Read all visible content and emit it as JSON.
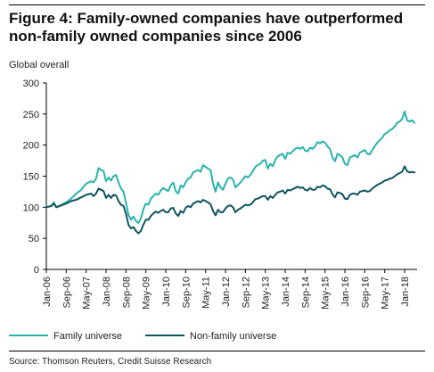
{
  "figure": {
    "title": "Figure 4: Family-owned companies have outperformed non-family owned companies since 2006",
    "source": "Source: Thomson Reuters, Credit Suisse Research"
  },
  "colors": {
    "family": "#2ab3ad",
    "non_family": "#0f5560",
    "axis": "#000000"
  },
  "chart_data": {
    "type": "line",
    "title": "Figure 4: Family-owned companies have outperformed non-family owned companies since 2006",
    "xlabel": "",
    "ylabel": "Global overall",
    "ylim": [
      0,
      300
    ],
    "yticks": [
      0,
      50,
      100,
      150,
      200,
      250,
      300
    ],
    "xlim": [
      "2006-01",
      "2018-06"
    ],
    "xtick_labels": [
      "Jan-06",
      "Sep-06",
      "May-07",
      "Jan-08",
      "Sep-08",
      "May-09",
      "Jan-10",
      "Sep-10",
      "May-11",
      "Jan-12",
      "Sep-12",
      "May-13",
      "Jan-14",
      "Sep-14",
      "May-15",
      "Jan-16",
      "Sep-16",
      "May-17",
      "Jan-18"
    ],
    "grid": false,
    "legend_position": "bottom",
    "series": [
      {
        "name": "Family universe",
        "color": "#2ab3ad",
        "points": [
          [
            "2006-01",
            100
          ],
          [
            "2006-03",
            102
          ],
          [
            "2006-04",
            108
          ],
          [
            "2006-05",
            100
          ],
          [
            "2006-07",
            104
          ],
          [
            "2006-09",
            108
          ],
          [
            "2006-11",
            114
          ],
          [
            "2007-01",
            122
          ],
          [
            "2007-03",
            128
          ],
          [
            "2007-05",
            138
          ],
          [
            "2007-07",
            142
          ],
          [
            "2007-08",
            140
          ],
          [
            "2007-09",
            146
          ],
          [
            "2007-10",
            163
          ],
          [
            "2007-11",
            160
          ],
          [
            "2007-12",
            158
          ],
          [
            "2008-01",
            142
          ],
          [
            "2008-02",
            148
          ],
          [
            "2008-03",
            143
          ],
          [
            "2008-04",
            150
          ],
          [
            "2008-05",
            152
          ],
          [
            "2008-06",
            140
          ],
          [
            "2008-07",
            130
          ],
          [
            "2008-08",
            125
          ],
          [
            "2008-09",
            108
          ],
          [
            "2008-10",
            88
          ],
          [
            "2008-11",
            80
          ],
          [
            "2008-12",
            85
          ],
          [
            "2009-01",
            78
          ],
          [
            "2009-02",
            75
          ],
          [
            "2009-03",
            82
          ],
          [
            "2009-04",
            97
          ],
          [
            "2009-05",
            106
          ],
          [
            "2009-06",
            104
          ],
          [
            "2009-07",
            114
          ],
          [
            "2009-08",
            118
          ],
          [
            "2009-09",
            122
          ],
          [
            "2009-10",
            120
          ],
          [
            "2009-11",
            127
          ],
          [
            "2009-12",
            131
          ],
          [
            "2010-01",
            128
          ],
          [
            "2010-02",
            126
          ],
          [
            "2010-03",
            135
          ],
          [
            "2010-04",
            140
          ],
          [
            "2010-05",
            126
          ],
          [
            "2010-06",
            122
          ],
          [
            "2010-07",
            135
          ],
          [
            "2010-08",
            132
          ],
          [
            "2010-09",
            140
          ],
          [
            "2010-10",
            146
          ],
          [
            "2010-11",
            148
          ],
          [
            "2010-12",
            156
          ],
          [
            "2011-01",
            158
          ],
          [
            "2011-02",
            160
          ],
          [
            "2011-03",
            157
          ],
          [
            "2011-04",
            168
          ],
          [
            "2011-05",
            165
          ],
          [
            "2011-06",
            162
          ],
          [
            "2011-07",
            160
          ],
          [
            "2011-08",
            138
          ],
          [
            "2011-09",
            125
          ],
          [
            "2011-10",
            140
          ],
          [
            "2011-11",
            132
          ],
          [
            "2011-12",
            128
          ],
          [
            "2012-01",
            138
          ],
          [
            "2012-02",
            146
          ],
          [
            "2012-03",
            148
          ],
          [
            "2012-04",
            145
          ],
          [
            "2012-05",
            132
          ],
          [
            "2012-06",
            136
          ],
          [
            "2012-07",
            140
          ],
          [
            "2012-08",
            145
          ],
          [
            "2012-09",
            150
          ],
          [
            "2012-10",
            148
          ],
          [
            "2012-11",
            152
          ],
          [
            "2012-12",
            158
          ],
          [
            "2013-01",
            165
          ],
          [
            "2013-02",
            168
          ],
          [
            "2013-03",
            170
          ],
          [
            "2013-04",
            175
          ],
          [
            "2013-05",
            176
          ],
          [
            "2013-06",
            162
          ],
          [
            "2013-07",
            170
          ],
          [
            "2013-08",
            166
          ],
          [
            "2013-09",
            176
          ],
          [
            "2013-10",
            182
          ],
          [
            "2013-11",
            184
          ],
          [
            "2013-12",
            186
          ],
          [
            "2014-01",
            178
          ],
          [
            "2014-02",
            188
          ],
          [
            "2014-03",
            186
          ],
          [
            "2014-04",
            190
          ],
          [
            "2014-05",
            194
          ],
          [
            "2014-06",
            196
          ],
          [
            "2014-07",
            194
          ],
          [
            "2014-08",
            197
          ],
          [
            "2014-09",
            191
          ],
          [
            "2014-10",
            190
          ],
          [
            "2014-11",
            196
          ],
          [
            "2014-12",
            194
          ],
          [
            "2015-01",
            198
          ],
          [
            "2015-02",
            205
          ],
          [
            "2015-03",
            203
          ],
          [
            "2015-04",
            206
          ],
          [
            "2015-05",
            204
          ],
          [
            "2015-06",
            198
          ],
          [
            "2015-07",
            194
          ],
          [
            "2015-08",
            180
          ],
          [
            "2015-09",
            174
          ],
          [
            "2015-10",
            186
          ],
          [
            "2015-11",
            184
          ],
          [
            "2015-12",
            180
          ],
          [
            "2016-01",
            170
          ],
          [
            "2016-02",
            168
          ],
          [
            "2016-03",
            180
          ],
          [
            "2016-04",
            182
          ],
          [
            "2016-05",
            184
          ],
          [
            "2016-06",
            180
          ],
          [
            "2016-07",
            188
          ],
          [
            "2016-08",
            190
          ],
          [
            "2016-09",
            192
          ],
          [
            "2016-10",
            186
          ],
          [
            "2016-11",
            185
          ],
          [
            "2016-12",
            192
          ],
          [
            "2017-01",
            198
          ],
          [
            "2017-02",
            204
          ],
          [
            "2017-03",
            208
          ],
          [
            "2017-04",
            212
          ],
          [
            "2017-05",
            218
          ],
          [
            "2017-06",
            220
          ],
          [
            "2017-07",
            224
          ],
          [
            "2017-08",
            226
          ],
          [
            "2017-09",
            230
          ],
          [
            "2017-10",
            236
          ],
          [
            "2017-11",
            238
          ],
          [
            "2017-12",
            242
          ],
          [
            "2018-01",
            254
          ],
          [
            "2018-02",
            240
          ],
          [
            "2018-03",
            238
          ],
          [
            "2018-04",
            240
          ],
          [
            "2018-05",
            236
          ]
        ]
      },
      {
        "name": "Non-family universe",
        "color": "#0f5560",
        "points": [
          [
            "2006-01",
            100
          ],
          [
            "2006-03",
            102
          ],
          [
            "2006-04",
            106
          ],
          [
            "2006-05",
            100
          ],
          [
            "2006-07",
            103
          ],
          [
            "2006-09",
            106
          ],
          [
            "2006-11",
            110
          ],
          [
            "2007-01",
            112
          ],
          [
            "2007-03",
            116
          ],
          [
            "2007-05",
            120
          ],
          [
            "2007-07",
            122
          ],
          [
            "2007-08",
            118
          ],
          [
            "2007-09",
            122
          ],
          [
            "2007-10",
            130
          ],
          [
            "2007-11",
            128
          ],
          [
            "2007-12",
            126
          ],
          [
            "2008-01",
            115
          ],
          [
            "2008-02",
            120
          ],
          [
            "2008-03",
            115
          ],
          [
            "2008-04",
            120
          ],
          [
            "2008-05",
            119
          ],
          [
            "2008-06",
            110
          ],
          [
            "2008-07",
            104
          ],
          [
            "2008-08",
            102
          ],
          [
            "2008-09",
            90
          ],
          [
            "2008-10",
            72
          ],
          [
            "2008-11",
            66
          ],
          [
            "2008-12",
            68
          ],
          [
            "2009-01",
            62
          ],
          [
            "2009-02",
            58
          ],
          [
            "2009-03",
            62
          ],
          [
            "2009-04",
            72
          ],
          [
            "2009-05",
            80
          ],
          [
            "2009-06",
            80
          ],
          [
            "2009-07",
            86
          ],
          [
            "2009-08",
            90
          ],
          [
            "2009-09",
            93
          ],
          [
            "2009-10",
            91
          ],
          [
            "2009-11",
            94
          ],
          [
            "2009-12",
            96
          ],
          [
            "2010-01",
            92
          ],
          [
            "2010-02",
            92
          ],
          [
            "2010-03",
            98
          ],
          [
            "2010-04",
            99
          ],
          [
            "2010-05",
            90
          ],
          [
            "2010-06",
            86
          ],
          [
            "2010-07",
            94
          ],
          [
            "2010-08",
            91
          ],
          [
            "2010-09",
            99
          ],
          [
            "2010-10",
            102
          ],
          [
            "2010-11",
            100
          ],
          [
            "2010-12",
            106
          ],
          [
            "2011-01",
            108
          ],
          [
            "2011-02",
            110
          ],
          [
            "2011-03",
            108
          ],
          [
            "2011-04",
            112
          ],
          [
            "2011-05",
            110
          ],
          [
            "2011-06",
            108
          ],
          [
            "2011-07",
            105
          ],
          [
            "2011-08",
            94
          ],
          [
            "2011-09",
            87
          ],
          [
            "2011-10",
            96
          ],
          [
            "2011-11",
            92
          ],
          [
            "2011-12",
            92
          ],
          [
            "2012-01",
            98
          ],
          [
            "2012-02",
            102
          ],
          [
            "2012-03",
            103
          ],
          [
            "2012-04",
            100
          ],
          [
            "2012-05",
            92
          ],
          [
            "2012-06",
            96
          ],
          [
            "2012-07",
            98
          ],
          [
            "2012-08",
            101
          ],
          [
            "2012-09",
            104
          ],
          [
            "2012-10",
            103
          ],
          [
            "2012-11",
            104
          ],
          [
            "2012-12",
            108
          ],
          [
            "2013-01",
            113
          ],
          [
            "2013-02",
            114
          ],
          [
            "2013-03",
            116
          ],
          [
            "2013-04",
            118
          ],
          [
            "2013-05",
            118
          ],
          [
            "2013-06",
            112
          ],
          [
            "2013-07",
            118
          ],
          [
            "2013-08",
            115
          ],
          [
            "2013-09",
            120
          ],
          [
            "2013-10",
            124
          ],
          [
            "2013-11",
            125
          ],
          [
            "2013-12",
            127
          ],
          [
            "2014-01",
            122
          ],
          [
            "2014-02",
            128
          ],
          [
            "2014-03",
            127
          ],
          [
            "2014-04",
            129
          ],
          [
            "2014-05",
            131
          ],
          [
            "2014-06",
            133
          ],
          [
            "2014-07",
            131
          ],
          [
            "2014-08",
            132
          ],
          [
            "2014-09",
            128
          ],
          [
            "2014-10",
            127
          ],
          [
            "2014-11",
            131
          ],
          [
            "2014-12",
            128
          ],
          [
            "2015-01",
            128
          ],
          [
            "2015-02",
            133
          ],
          [
            "2015-03",
            132
          ],
          [
            "2015-04",
            135
          ],
          [
            "2015-05",
            134
          ],
          [
            "2015-06",
            130
          ],
          [
            "2015-07",
            129
          ],
          [
            "2015-08",
            121
          ],
          [
            "2015-09",
            116
          ],
          [
            "2015-10",
            124
          ],
          [
            "2015-11",
            123
          ],
          [
            "2015-12",
            121
          ],
          [
            "2016-01",
            114
          ],
          [
            "2016-02",
            113
          ],
          [
            "2016-03",
            120
          ],
          [
            "2016-04",
            122
          ],
          [
            "2016-05",
            122
          ],
          [
            "2016-06",
            120
          ],
          [
            "2016-07",
            125
          ],
          [
            "2016-08",
            126
          ],
          [
            "2016-09",
            127
          ],
          [
            "2016-10",
            125
          ],
          [
            "2016-11",
            126
          ],
          [
            "2016-12",
            130
          ],
          [
            "2017-01",
            133
          ],
          [
            "2017-02",
            136
          ],
          [
            "2017-03",
            138
          ],
          [
            "2017-04",
            140
          ],
          [
            "2017-05",
            143
          ],
          [
            "2017-06",
            144
          ],
          [
            "2017-07",
            146
          ],
          [
            "2017-08",
            147
          ],
          [
            "2017-09",
            150
          ],
          [
            "2017-10",
            153
          ],
          [
            "2017-11",
            155
          ],
          [
            "2017-12",
            157
          ],
          [
            "2018-01",
            166
          ],
          [
            "2018-02",
            158
          ],
          [
            "2018-03",
            156
          ],
          [
            "2018-04",
            157
          ],
          [
            "2018-05",
            156
          ]
        ]
      }
    ]
  }
}
